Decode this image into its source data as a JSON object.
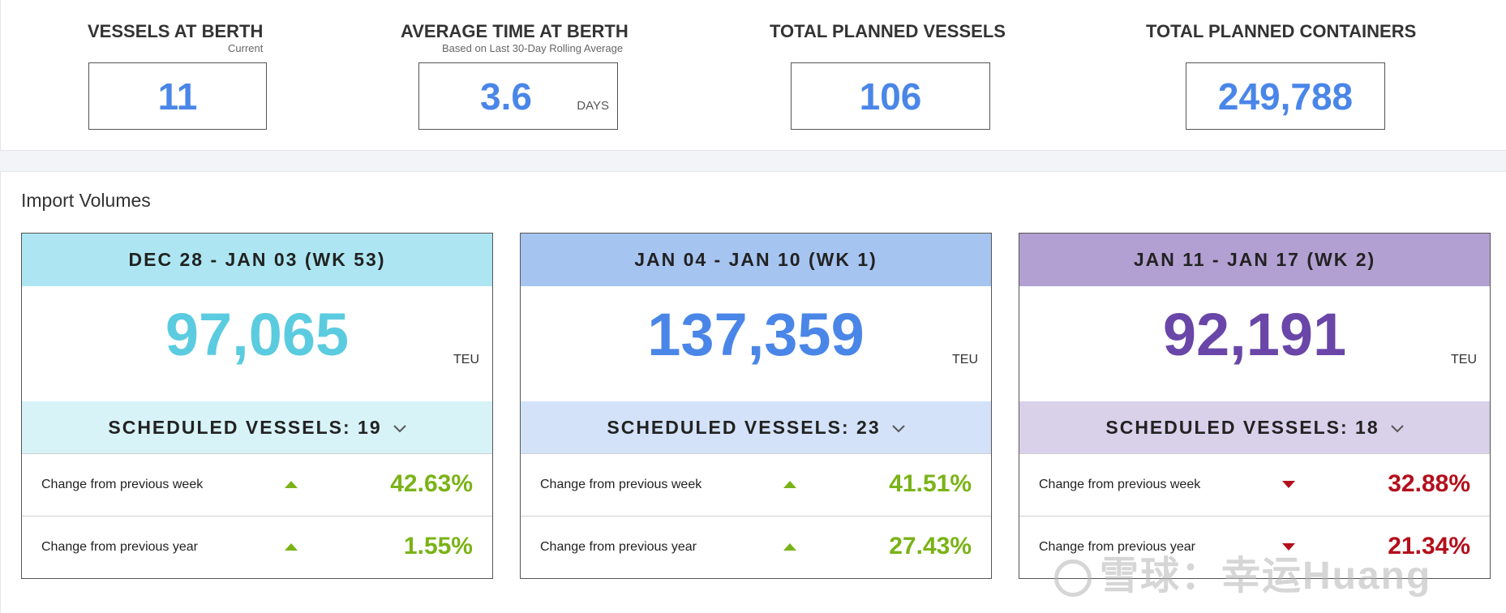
{
  "kpis": [
    {
      "title": "VESSELS AT BERTH",
      "subtitle": "Current",
      "value": "11",
      "unit": ""
    },
    {
      "title": "AVERAGE TIME AT BERTH",
      "subtitle": "Based on Last 30-Day Rolling Average",
      "value": "3.6",
      "unit": "DAYS"
    },
    {
      "title": "TOTAL PLANNED VESSELS",
      "subtitle": "",
      "value": "106",
      "unit": ""
    },
    {
      "title": "TOTAL PLANNED CONTAINERS",
      "subtitle": "",
      "value": "249,788",
      "unit": ""
    }
  ],
  "import_volumes": {
    "title": "Import Volumes",
    "weeks": [
      {
        "range": "DEC 28 - JAN 03 (WK 53)",
        "total": "97,065",
        "unit": "TEU",
        "scheduled": "SCHEDULED VESSELS: 19",
        "change_week": {
          "label": "Change from previous week",
          "direction": "up",
          "value": "42.63%"
        },
        "change_year": {
          "label": "Change from previous year",
          "direction": "up",
          "value": "1.55%"
        },
        "colors": {
          "header": "#ade6f2",
          "sched": "#d8f3f8",
          "total": "#5bcbe0"
        }
      },
      {
        "range": "JAN 04 - JAN 10 (WK 1)",
        "total": "137,359",
        "unit": "TEU",
        "scheduled": "SCHEDULED VESSELS: 23",
        "change_week": {
          "label": "Change from previous week",
          "direction": "up",
          "value": "41.51%"
        },
        "change_year": {
          "label": "Change from previous year",
          "direction": "up",
          "value": "27.43%"
        },
        "colors": {
          "header": "#a6c4f0",
          "sched": "#d3e2f8",
          "total": "#4a86e8"
        }
      },
      {
        "range": "JAN 11 - JAN 17 (WK 2)",
        "total": "92,191",
        "unit": "TEU",
        "scheduled": "SCHEDULED VESSELS: 18",
        "change_week": {
          "label": "Change from previous week",
          "direction": "down",
          "value": "32.88%"
        },
        "change_year": {
          "label": "Change from previous year",
          "direction": "down",
          "value": "21.34%"
        },
        "colors": {
          "header": "#b3a0d2",
          "sched": "#d9d0ea",
          "total": "#6a46a8"
        }
      }
    ]
  },
  "watermark": "雪球：幸运Huang"
}
